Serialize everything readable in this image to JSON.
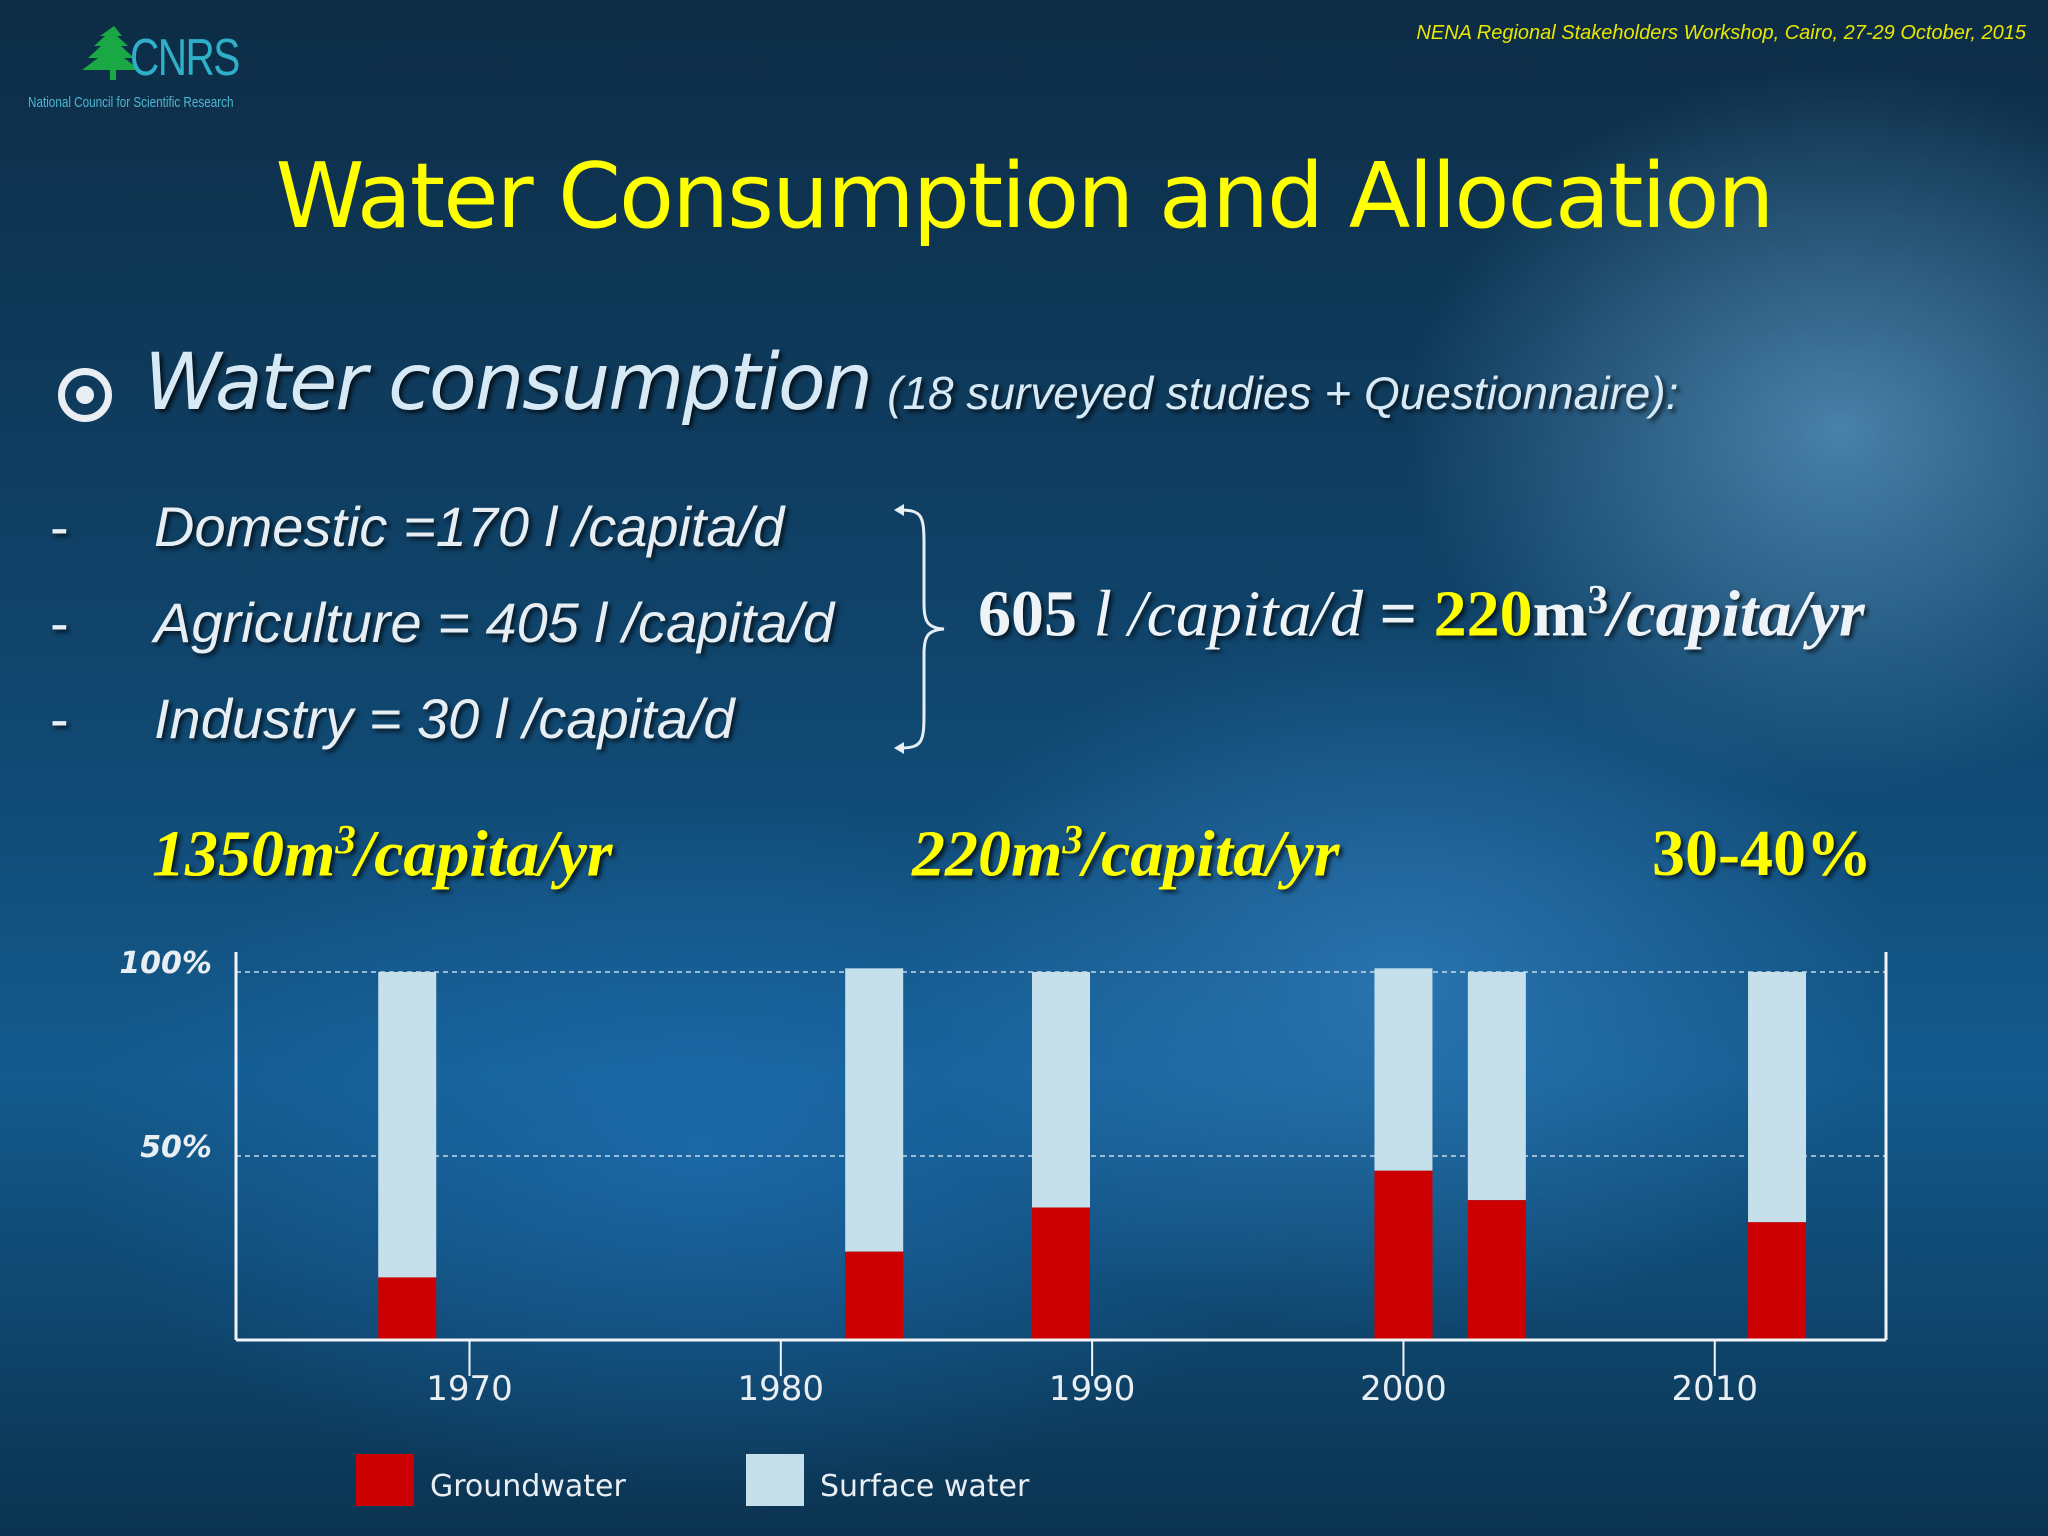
{
  "header": {
    "logo_text": "CNRS",
    "logo_subtitle": "National Council for Scientific Research",
    "event": "NENA Regional  Stakeholders Workshop, Cairo, 27-29 October, 2015"
  },
  "slide": {
    "title": "Water Consumption and Allocation",
    "bullet_main": "Water consumption",
    "bullet_sub": "(18 surveyed studies  + Questionnaire):",
    "items": [
      {
        "dash": "-",
        "text": "Domestic =170 l /capita/d"
      },
      {
        "dash": "-",
        "text": "Agriculture = 405 l /capita/d"
      },
      {
        "dash": "-",
        "text": "Industry = 30 l /capita/d"
      }
    ],
    "total": {
      "part1": "605",
      "part2": " l /capita/d",
      "part3": " = ",
      "part4": "220",
      "part5": "m",
      "part6": "3",
      "part7": "/capita/yr"
    },
    "stats": [
      {
        "num": "1350",
        "m": "m",
        "sup": "3",
        "rest": "/capita/yr"
      },
      {
        "num": "220",
        "m": "m",
        "sup": "3",
        "rest": "/capita/yr"
      },
      {
        "text": "30-40%"
      }
    ]
  },
  "colors": {
    "accent": "#ffff00",
    "groundwater": "#cc0000",
    "surface_water": "#c5e0ea"
  },
  "chart_data": {
    "type": "bar",
    "stacked": true,
    "x": [
      1968,
      1983,
      1989,
      2000,
      2003,
      2012
    ],
    "series": [
      {
        "name": "Groundwater",
        "values": [
          17,
          24,
          36,
          46,
          38,
          32
        ]
      },
      {
        "name": "Surface water",
        "values": [
          83,
          77,
          64,
          55,
          62,
          68
        ]
      }
    ],
    "ytick_labels": [
      "50%",
      "100%"
    ],
    "ytick_values": [
      50,
      100
    ],
    "xticks": [
      1970,
      1980,
      1990,
      2000,
      2010
    ],
    "xlim": [
      1962.5,
      2015.5
    ],
    "ylim": [
      0,
      100
    ],
    "grid": "dashed at 50% and 100%",
    "legend_position": "bottom-left"
  }
}
